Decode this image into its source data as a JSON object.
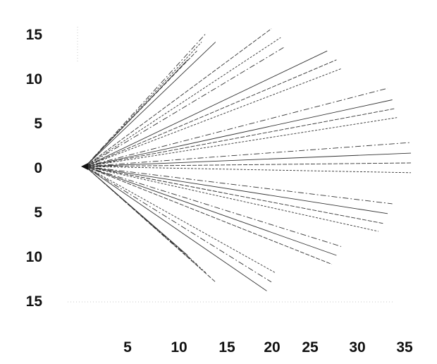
{
  "chart_data": {
    "type": "line",
    "title": "",
    "xlabel": "",
    "ylabel": "",
    "x_ticks": [
      "5",
      "10",
      "15",
      "20",
      "25",
      "30",
      "35"
    ],
    "y_ticks": [
      "15",
      "10",
      "5",
      "0",
      "5",
      "10",
      "15"
    ],
    "xlim": [
      0,
      35
    ],
    "ylim": [
      -15,
      15
    ],
    "grid": false,
    "legend": "none",
    "origin": [
      0,
      0
    ],
    "line_color": "#333333",
    "series": [
      {
        "end": [
          11,
          12
        ]
      },
      {
        "end": [
          12,
          13
        ]
      },
      {
        "end": [
          12.5,
          14
        ]
      },
      {
        "end": [
          13,
          15
        ]
      },
      {
        "end": [
          14,
          14
        ]
      },
      {
        "end": [
          20,
          15.5
        ]
      },
      {
        "end": [
          21,
          14.5
        ]
      },
      {
        "end": [
          21.5,
          13.5
        ]
      },
      {
        "end": [
          26,
          13
        ]
      },
      {
        "end": [
          27,
          12
        ]
      },
      {
        "end": [
          27.5,
          11
        ]
      },
      {
        "end": [
          32.5,
          8.8
        ]
      },
      {
        "end": [
          33,
          7.5
        ]
      },
      {
        "end": [
          33.2,
          6.5
        ]
      },
      {
        "end": [
          33.5,
          5.5
        ]
      },
      {
        "end": [
          35,
          2.7
        ]
      },
      {
        "end": [
          35,
          1.5
        ]
      },
      {
        "end": [
          35,
          0.4
        ]
      },
      {
        "end": [
          35,
          -0.7
        ]
      },
      {
        "end": [
          33,
          -4.2
        ]
      },
      {
        "end": [
          32.5,
          -5.3
        ]
      },
      {
        "end": [
          32,
          -6.4
        ]
      },
      {
        "end": [
          31.5,
          -7.3
        ]
      },
      {
        "end": [
          27.5,
          -9
        ]
      },
      {
        "end": [
          27,
          -10
        ]
      },
      {
        "end": [
          26.5,
          -11
        ]
      },
      {
        "end": [
          20.5,
          -12
        ]
      },
      {
        "end": [
          20,
          -13
        ]
      },
      {
        "end": [
          19.5,
          -14
        ]
      },
      {
        "end": [
          14,
          -13
        ]
      },
      {
        "end": [
          13,
          -12
        ]
      },
      {
        "end": [
          12,
          -11
        ]
      },
      {
        "end": [
          11,
          -10
        ]
      }
    ]
  }
}
